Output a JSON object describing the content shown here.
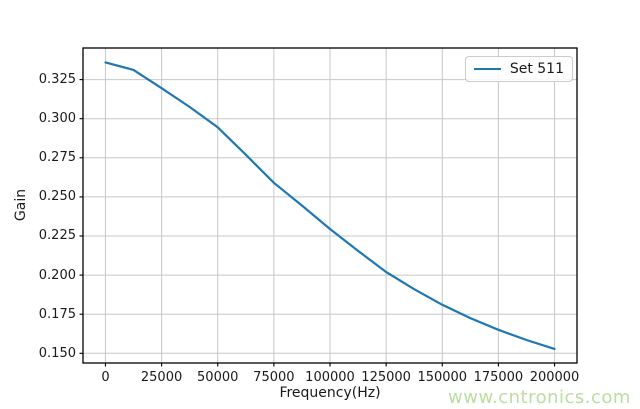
{
  "figure": {
    "background": "#ffffff",
    "watermark_text": "www.cntronics.com",
    "watermark_color": "#b9dea0"
  },
  "colors": {
    "line": "#1f77b4",
    "grid": "#c8c8c8",
    "spine": "#000000",
    "text": "#1a1a1a",
    "legend_border": "#cccccc"
  },
  "chart_data": {
    "type": "line",
    "title": "",
    "xlabel": "Frequency(Hz)",
    "ylabel": "Gain",
    "grid": true,
    "xlim": [
      -10000,
      210000
    ],
    "ylim": [
      0.1438,
      0.3452
    ],
    "x_ticks": [
      0,
      25000,
      50000,
      75000,
      100000,
      125000,
      150000,
      175000,
      200000
    ],
    "x_tick_labels": [
      "0",
      "25000",
      "50000",
      "75000",
      "100000",
      "125000",
      "150000",
      "175000",
      "200000"
    ],
    "y_ticks": [
      0.15,
      0.175,
      0.2,
      0.225,
      0.25,
      0.275,
      0.3,
      0.325
    ],
    "y_tick_labels": [
      "0.150",
      "0.175",
      "0.200",
      "0.225",
      "0.250",
      "0.275",
      "0.300",
      "0.325"
    ],
    "legend": {
      "position": "upper right",
      "entries": [
        {
          "label": "Set 511",
          "color": "#1f77b4"
        }
      ]
    },
    "series": [
      {
        "name": "Set 511",
        "color": "#1f77b4",
        "x": [
          0,
          12500,
          25000,
          37500,
          50000,
          62500,
          75000,
          87500,
          100000,
          112500,
          125000,
          137500,
          150000,
          162500,
          175000,
          187500,
          200000
        ],
        "y": [
          0.336,
          0.3312,
          0.3195,
          0.3075,
          0.2945,
          0.277,
          0.259,
          0.2445,
          0.2295,
          0.2155,
          0.202,
          0.191,
          0.181,
          0.1725,
          0.165,
          0.1585,
          0.1528
        ]
      }
    ]
  }
}
